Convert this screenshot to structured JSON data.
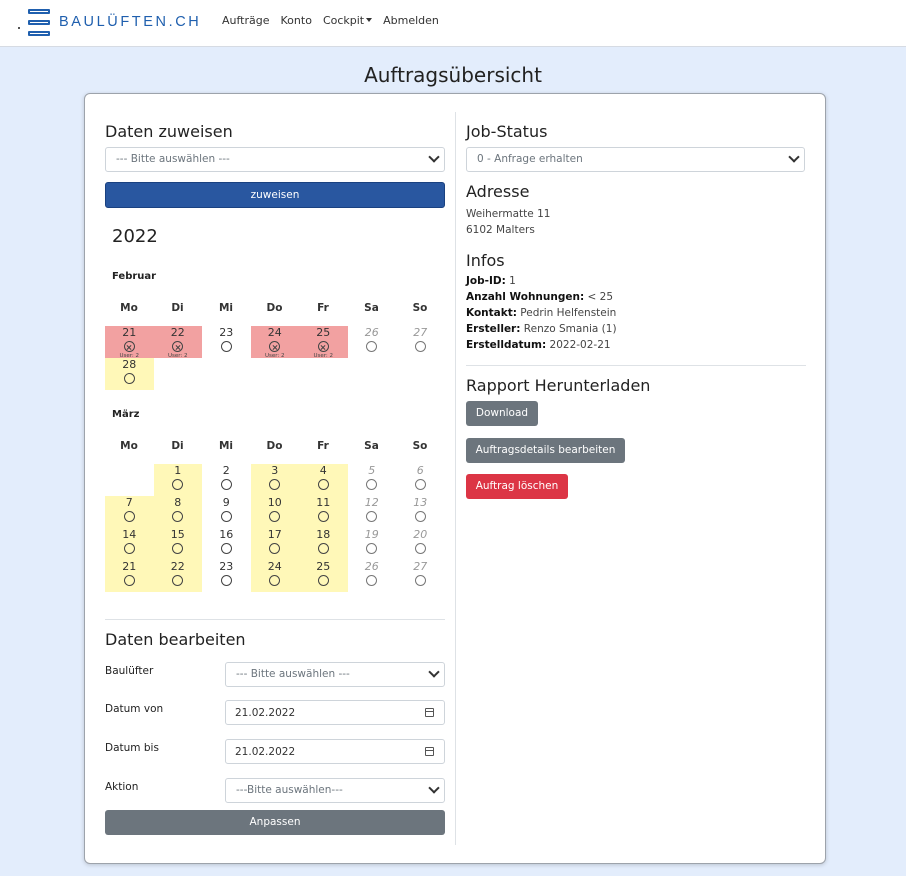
{
  "brand": {
    "name": "BAULÜFTEN.CH"
  },
  "nav": {
    "items": [
      {
        "label": "Aufträge"
      },
      {
        "label": "Konto"
      },
      {
        "label": "Cockpit"
      },
      {
        "label": "Abmelden"
      }
    ]
  },
  "page": {
    "title": "Auftragsübersicht"
  },
  "assign": {
    "heading": "Daten zuweisen",
    "select_value": "--- Bitte auswählen ---",
    "button": "zuweisen"
  },
  "calendar": {
    "year": "2022",
    "weekdays": [
      "Mo",
      "Di",
      "Mi",
      "Do",
      "Fr",
      "Sa",
      "So"
    ],
    "months": [
      {
        "name": "Februar",
        "rows": [
          [
            {
              "day": "21",
              "state": "red",
              "icon": "x-circle-icon",
              "user": "User: 2"
            },
            {
              "day": "22",
              "state": "red",
              "icon": "x-circle-icon",
              "user": "User: 2"
            },
            {
              "day": "23",
              "state": "none",
              "icon": "circle-icon",
              "user": ""
            },
            {
              "day": "24",
              "state": "red",
              "icon": "x-circle-icon",
              "user": "User: 2"
            },
            {
              "day": "25",
              "state": "red",
              "icon": "x-circle-icon",
              "user": "User: 2"
            },
            {
              "day": "26",
              "state": "weekend",
              "icon": "circle-icon",
              "user": ""
            },
            {
              "day": "27",
              "state": "weekend",
              "icon": "circle-icon",
              "user": ""
            }
          ],
          [
            {
              "day": "28",
              "state": "yellow",
              "icon": "circle-icon",
              "user": ""
            }
          ]
        ]
      },
      {
        "name": "März",
        "rows": [
          [
            {
              "day": "",
              "state": "empty"
            },
            {
              "day": "1",
              "state": "yellow",
              "icon": "circle-icon",
              "user": ""
            },
            {
              "day": "2",
              "state": "none",
              "icon": "circle-icon",
              "user": ""
            },
            {
              "day": "3",
              "state": "yellow",
              "icon": "circle-icon",
              "user": ""
            },
            {
              "day": "4",
              "state": "yellow",
              "icon": "circle-icon",
              "user": ""
            },
            {
              "day": "5",
              "state": "weekend",
              "icon": "circle-icon",
              "user": ""
            },
            {
              "day": "6",
              "state": "weekend",
              "icon": "circle-icon",
              "user": ""
            }
          ],
          [
            {
              "day": "7",
              "state": "yellow",
              "icon": "circle-icon",
              "user": ""
            },
            {
              "day": "8",
              "state": "yellow",
              "icon": "circle-icon",
              "user": ""
            },
            {
              "day": "9",
              "state": "none",
              "icon": "circle-icon",
              "user": ""
            },
            {
              "day": "10",
              "state": "yellow",
              "icon": "circle-icon",
              "user": ""
            },
            {
              "day": "11",
              "state": "yellow",
              "icon": "circle-icon",
              "user": ""
            },
            {
              "day": "12",
              "state": "weekend",
              "icon": "circle-icon",
              "user": ""
            },
            {
              "day": "13",
              "state": "weekend",
              "icon": "circle-icon",
              "user": ""
            }
          ],
          [
            {
              "day": "14",
              "state": "yellow",
              "icon": "circle-icon",
              "user": ""
            },
            {
              "day": "15",
              "state": "yellow",
              "icon": "circle-icon",
              "user": ""
            },
            {
              "day": "16",
              "state": "none",
              "icon": "circle-icon",
              "user": ""
            },
            {
              "day": "17",
              "state": "yellow",
              "icon": "circle-icon",
              "user": ""
            },
            {
              "day": "18",
              "state": "yellow",
              "icon": "circle-icon",
              "user": ""
            },
            {
              "day": "19",
              "state": "weekend",
              "icon": "circle-icon",
              "user": ""
            },
            {
              "day": "20",
              "state": "weekend",
              "icon": "circle-icon",
              "user": ""
            }
          ],
          [
            {
              "day": "21",
              "state": "yellow",
              "icon": "circle-icon",
              "user": ""
            },
            {
              "day": "22",
              "state": "yellow",
              "icon": "circle-icon",
              "user": ""
            },
            {
              "day": "23",
              "state": "none",
              "icon": "circle-icon",
              "user": ""
            },
            {
              "day": "24",
              "state": "yellow",
              "icon": "circle-icon",
              "user": ""
            },
            {
              "day": "25",
              "state": "yellow",
              "icon": "circle-icon",
              "user": ""
            },
            {
              "day": "26",
              "state": "weekend",
              "icon": "circle-icon",
              "user": ""
            },
            {
              "day": "27",
              "state": "weekend",
              "icon": "circle-icon",
              "user": ""
            }
          ]
        ]
      }
    ]
  },
  "edit": {
    "heading": "Daten bearbeiten",
    "fields": {
      "baulufter": {
        "label": "Baulüfter",
        "value": "--- Bitte auswählen ---"
      },
      "date_from": {
        "label": "Datum von",
        "value": "21.02.2022"
      },
      "date_to": {
        "label": "Datum bis",
        "value": "21.02.2022"
      },
      "action": {
        "label": "Aktion",
        "value": "---Bitte auswählen---"
      }
    },
    "button": "Anpassen"
  },
  "status": {
    "heading": "Job-Status",
    "select_value": "0 - Anfrage erhalten"
  },
  "address": {
    "heading": "Adresse",
    "line1": "Weihermatte 11",
    "line2": "6102 Malters"
  },
  "infos": {
    "heading": "Infos",
    "items": [
      {
        "label": "Job-ID:",
        "value": "1"
      },
      {
        "label": "Anzahl Wohnungen:",
        "value": "< 25"
      },
      {
        "label": "Kontakt:",
        "value": "Pedrin Helfenstein"
      },
      {
        "label": "Ersteller:",
        "value": "Renzo Smania (1)"
      },
      {
        "label": "Erstelldatum:",
        "value": "2022-02-21"
      }
    ]
  },
  "report": {
    "heading": "Rapport Herunterladen",
    "download": "Download",
    "edit_details": "Auftragsdetails bearbeiten",
    "delete": "Auftrag löschen"
  },
  "colors": {
    "primary": "#2957a0",
    "secondary": "#6c757d",
    "danger": "#dc3545",
    "booked": "#f2a1a1",
    "available": "#fff8b8",
    "background": "#e3edfc"
  }
}
